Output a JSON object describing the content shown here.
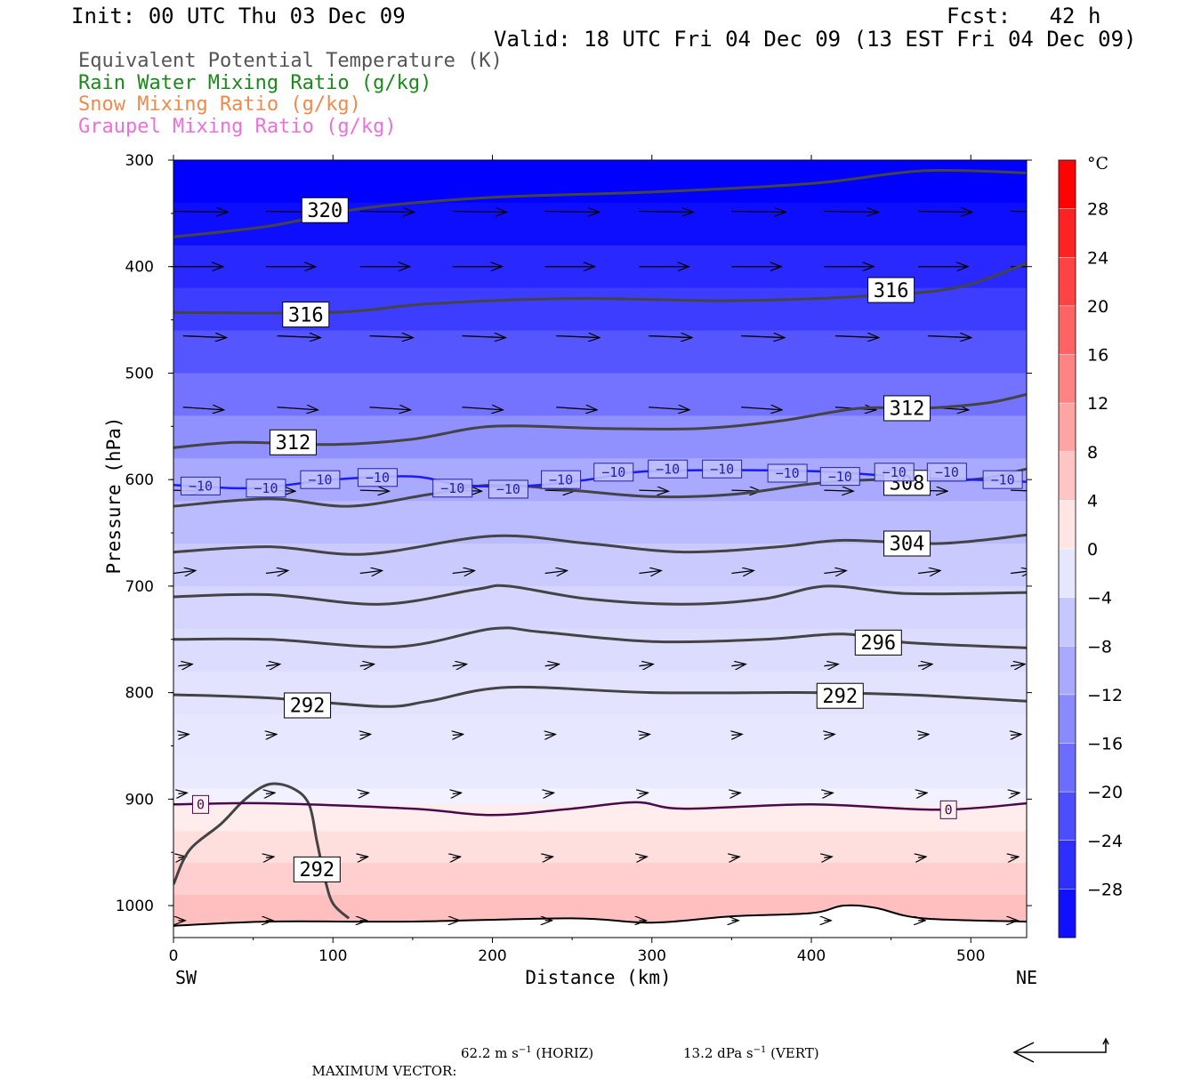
{
  "header": {
    "init": "Init: 00 UTC Thu 03 Dec 09",
    "fcst": "Fcst:   42 h",
    "valid": "Valid: 18 UTC Fri 04 Dec 09 (13 EST Fri 04 Dec 09)"
  },
  "fields": [
    {
      "label": "Equivalent Potential Temperature (K)",
      "color": "#555555"
    },
    {
      "label": "Rain Water Mixing Ratio (g/kg)",
      "color": "#1a8a1a"
    },
    {
      "label": "Snow Mixing Ratio (g/kg)",
      "color": "#f08a4b"
    },
    {
      "label": "Graupel Mixing Ratio (g/kg)",
      "color": "#ee6fdc"
    }
  ],
  "chart_data": {
    "type": "heatmap",
    "xlabel": "Distance (km)",
    "ylabel": "Pressure (hPa)",
    "xlim": [
      0,
      535
    ],
    "ylim": [
      1030,
      300
    ],
    "x_ticks": [
      0,
      100,
      200,
      300,
      400,
      500
    ],
    "y_ticks": [
      300,
      400,
      500,
      600,
      700,
      800,
      900,
      1000
    ],
    "x_end_labels": {
      "left": "SW",
      "right": "NE"
    },
    "colorbar": {
      "unit": "°C",
      "ticks": [
        28,
        24,
        20,
        16,
        12,
        8,
        4,
        0,
        -4,
        -8,
        -12,
        -16,
        -20,
        -24,
        -28
      ],
      "min": -32,
      "max": 32,
      "step": 4
    },
    "temperature_rows": [
      {
        "p": 300,
        "t": -34
      },
      {
        "p": 340,
        "t": -34
      },
      {
        "p": 380,
        "t": -30
      },
      {
        "p": 420,
        "t": -27
      },
      {
        "p": 460,
        "t": -24
      },
      {
        "p": 500,
        "t": -20
      },
      {
        "p": 540,
        "t": -16
      },
      {
        "p": 580,
        "t": -12
      },
      {
        "p": 620,
        "t": -9
      },
      {
        "p": 660,
        "t": -7
      },
      {
        "p": 700,
        "t": -5
      },
      {
        "p": 740,
        "t": -4
      },
      {
        "p": 780,
        "t": -3
      },
      {
        "p": 820,
        "t": -2
      },
      {
        "p": 860,
        "t": -2
      },
      {
        "p": 890,
        "t": -1
      },
      {
        "p": 905,
        "t": 0
      },
      {
        "p": 930,
        "t": 2
      },
      {
        "p": 960,
        "t": 4
      },
      {
        "p": 990,
        "t": 6
      },
      {
        "p": 1030,
        "t": 8
      }
    ],
    "theta_e_contours": [
      {
        "level": 320,
        "points": [
          [
            0,
            372
          ],
          [
            60,
            362
          ],
          [
            120,
            345
          ],
          [
            200,
            335
          ],
          [
            300,
            330
          ],
          [
            400,
            322
          ],
          [
            470,
            310
          ],
          [
            535,
            312
          ]
        ],
        "labels": [
          {
            "x": 95,
            "p": 347,
            "text": "320"
          }
        ]
      },
      {
        "level": 316,
        "points": [
          [
            0,
            443
          ],
          [
            100,
            443
          ],
          [
            160,
            435
          ],
          [
            250,
            430
          ],
          [
            350,
            432
          ],
          [
            430,
            428
          ],
          [
            490,
            420
          ],
          [
            535,
            397
          ]
        ],
        "labels": [
          {
            "x": 83,
            "p": 445,
            "text": "316"
          },
          {
            "x": 450,
            "p": 422,
            "text": "316"
          }
        ]
      },
      {
        "level": 312,
        "points": [
          [
            0,
            570
          ],
          [
            40,
            565
          ],
          [
            100,
            567
          ],
          [
            150,
            562
          ],
          [
            200,
            550
          ],
          [
            270,
            552
          ],
          [
            330,
            552
          ],
          [
            380,
            545
          ],
          [
            430,
            533
          ],
          [
            470,
            533
          ],
          [
            510,
            528
          ],
          [
            535,
            520
          ]
        ],
        "labels": [
          {
            "x": 75,
            "p": 565,
            "text": "312"
          },
          {
            "x": 460,
            "p": 533,
            "text": "312"
          }
        ]
      },
      {
        "level": 308,
        "points": [
          [
            0,
            625
          ],
          [
            60,
            618
          ],
          [
            110,
            625
          ],
          [
            160,
            614
          ],
          [
            200,
            605
          ],
          [
            250,
            610
          ],
          [
            300,
            616
          ],
          [
            350,
            614
          ],
          [
            400,
            604
          ],
          [
            440,
            600
          ],
          [
            500,
            600
          ],
          [
            535,
            590
          ]
        ],
        "labels": [
          {
            "x": 460,
            "p": 603,
            "text": "308"
          }
        ]
      },
      {
        "level": 304,
        "points": [
          [
            0,
            668
          ],
          [
            60,
            663
          ],
          [
            120,
            670
          ],
          [
            200,
            653
          ],
          [
            260,
            660
          ],
          [
            320,
            668
          ],
          [
            380,
            663
          ],
          [
            420,
            657
          ],
          [
            480,
            660
          ],
          [
            535,
            652
          ]
        ],
        "labels": [
          {
            "x": 460,
            "p": 660,
            "text": "304"
          }
        ]
      },
      {
        "level": 300,
        "points": [
          [
            0,
            710
          ],
          [
            60,
            708
          ],
          [
            130,
            717
          ],
          [
            190,
            703
          ],
          [
            210,
            700
          ],
          [
            260,
            712
          ],
          [
            320,
            717
          ],
          [
            370,
            712
          ],
          [
            410,
            700
          ],
          [
            460,
            707
          ],
          [
            535,
            706
          ]
        ],
        "labels": []
      },
      {
        "level": 296,
        "points": [
          [
            0,
            750
          ],
          [
            60,
            750
          ],
          [
            140,
            757
          ],
          [
            200,
            740
          ],
          [
            230,
            743
          ],
          [
            300,
            752
          ],
          [
            370,
            750
          ],
          [
            420,
            745
          ],
          [
            460,
            753
          ],
          [
            535,
            758
          ]
        ],
        "labels": [
          {
            "x": 442,
            "p": 753,
            "text": "296"
          }
        ]
      },
      {
        "level": 292,
        "points": [
          [
            0,
            802
          ],
          [
            60,
            805
          ],
          [
            130,
            813
          ],
          [
            160,
            808
          ],
          [
            210,
            795
          ],
          [
            300,
            800
          ],
          [
            400,
            800
          ],
          [
            460,
            802
          ],
          [
            535,
            808
          ]
        ],
        "labels": [
          {
            "x": 84,
            "p": 812,
            "text": "292"
          },
          {
            "x": 418,
            "p": 803,
            "text": "292"
          }
        ]
      },
      {
        "level": 292,
        "points": [
          [
            0,
            980
          ],
          [
            10,
            948
          ],
          [
            30,
            923
          ],
          [
            45,
            900
          ],
          [
            60,
            886
          ],
          [
            75,
            890
          ],
          [
            85,
            905
          ],
          [
            90,
            940
          ],
          [
            95,
            975
          ],
          [
            100,
            998
          ],
          [
            110,
            1012
          ]
        ],
        "labels": [
          {
            "x": 90,
            "p": 966,
            "text": "292"
          }
        ]
      }
    ],
    "isotherm_minus10": {
      "points": [
        [
          0,
          605
        ],
        [
          50,
          608
        ],
        [
          100,
          600
        ],
        [
          150,
          597
        ],
        [
          180,
          605
        ],
        [
          220,
          606
        ],
        [
          260,
          600
        ],
        [
          300,
          592
        ],
        [
          400,
          592
        ],
        [
          460,
          598
        ],
        [
          500,
          600
        ],
        [
          535,
          602
        ]
      ],
      "labels": [
        {
          "x": 17,
          "p": 606
        },
        {
          "x": 58,
          "p": 608
        },
        {
          "x": 92,
          "p": 600
        },
        {
          "x": 128,
          "p": 598
        },
        {
          "x": 175,
          "p": 608
        },
        {
          "x": 210,
          "p": 609
        },
        {
          "x": 243,
          "p": 600
        },
        {
          "x": 276,
          "p": 593
        },
        {
          "x": 310,
          "p": 590
        },
        {
          "x": 344,
          "p": 590
        },
        {
          "x": 385,
          "p": 594
        },
        {
          "x": 418,
          "p": 597
        },
        {
          "x": 452,
          "p": 593
        },
        {
          "x": 485,
          "p": 593
        },
        {
          "x": 520,
          "p": 600
        }
      ],
      "text": "−10"
    },
    "isotherm_zero": {
      "points": [
        [
          0,
          905
        ],
        [
          60,
          904
        ],
        [
          150,
          909
        ],
        [
          200,
          915
        ],
        [
          250,
          909
        ],
        [
          290,
          903
        ],
        [
          320,
          909
        ],
        [
          400,
          905
        ],
        [
          480,
          910
        ],
        [
          535,
          904
        ]
      ],
      "labels": [
        {
          "x": 17,
          "p": 905,
          "text": "0"
        },
        {
          "x": 486,
          "p": 910,
          "text": "0"
        }
      ]
    },
    "terrain": {
      "points": [
        [
          0,
          1019
        ],
        [
          60,
          1015
        ],
        [
          150,
          1015
        ],
        [
          250,
          1012
        ],
        [
          300,
          1016
        ],
        [
          350,
          1010
        ],
        [
          400,
          1007
        ],
        [
          420,
          1000
        ],
        [
          440,
          1002
        ],
        [
          470,
          1012
        ],
        [
          535,
          1015
        ]
      ]
    },
    "wind_rows": [
      {
        "p": 348,
        "xs": [
          0,
          58,
          117,
          175,
          233,
          292,
          350,
          408,
          467,
          525
        ],
        "len": 60,
        "dp": 1
      },
      {
        "p": 400,
        "xs": [
          0,
          58,
          117,
          175,
          233,
          292,
          350,
          408,
          467,
          525
        ],
        "len": 55,
        "dp": 0
      },
      {
        "p": 465,
        "xs": [
          6,
          65,
          123,
          181,
          240,
          298,
          356,
          415,
          473
        ],
        "len": 48,
        "dp": 2
      },
      {
        "p": 532,
        "xs": [
          6,
          65,
          123,
          181,
          240,
          298,
          356,
          415,
          473
        ],
        "len": 45,
        "dp": 3
      },
      {
        "p": 610,
        "xs": [
          0,
          58,
          117,
          175,
          233,
          292,
          350,
          408,
          467,
          525
        ],
        "len": 32,
        "dp": 1
      },
      {
        "p": 688,
        "xs": [
          0,
          58,
          117,
          175,
          233,
          292,
          350,
          408,
          467,
          525
        ],
        "len": 24,
        "dp": -3
      },
      {
        "p": 775,
        "xs": [
          3,
          58,
          117,
          175,
          233,
          292,
          350,
          408,
          467,
          525
        ],
        "len": 15,
        "dp": -2
      },
      {
        "p": 840,
        "xs": [
          3,
          58,
          117,
          175,
          233,
          292,
          350,
          408,
          467,
          525
        ],
        "len": 11,
        "dp": -1
      },
      {
        "p": 895,
        "xs": [
          3,
          58,
          117,
          175,
          233,
          292,
          350,
          408,
          467,
          525
        ],
        "len": 9,
        "dp": -1
      },
      {
        "p": 955,
        "xs": [
          3,
          58,
          117,
          175,
          233,
          292,
          350,
          408,
          467,
          525
        ],
        "len": 8,
        "dp": -1
      },
      {
        "p": 1014,
        "xs": [
          3,
          58,
          117,
          175,
          233,
          292,
          350,
          408,
          467,
          525
        ],
        "len": 7,
        "dp": 0
      }
    ]
  },
  "footer": {
    "max_vector_label": "MAXIMUM VECTOR:",
    "horiz_value": "62.2 m s",
    "horiz_unit_suffix": " (HORIZ)",
    "vert_value": "13.2 dPa s",
    "vert_unit_suffix": " (VERT)",
    "exponent": "−1"
  }
}
